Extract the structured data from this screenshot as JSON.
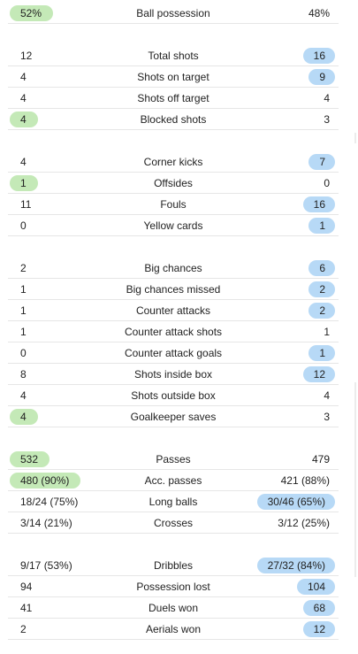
{
  "groups": [
    {
      "rows": [
        {
          "label": "Ball possession",
          "home": "52%",
          "away": "48%",
          "winner": "home"
        }
      ]
    },
    {
      "rows": [
        {
          "label": "Total shots",
          "home": "12",
          "away": "16",
          "winner": "away"
        },
        {
          "label": "Shots on target",
          "home": "4",
          "away": "9",
          "winner": "away"
        },
        {
          "label": "Shots off target",
          "home": "4",
          "away": "4",
          "winner": "none"
        },
        {
          "label": "Blocked shots",
          "home": "4",
          "away": "3",
          "winner": "home"
        }
      ]
    },
    {
      "rows": [
        {
          "label": "Corner kicks",
          "home": "4",
          "away": "7",
          "winner": "away"
        },
        {
          "label": "Offsides",
          "home": "1",
          "away": "0",
          "winner": "home"
        },
        {
          "label": "Fouls",
          "home": "11",
          "away": "16",
          "winner": "away"
        },
        {
          "label": "Yellow cards",
          "home": "0",
          "away": "1",
          "winner": "away"
        }
      ]
    },
    {
      "rows": [
        {
          "label": "Big chances",
          "home": "2",
          "away": "6",
          "winner": "away"
        },
        {
          "label": "Big chances missed",
          "home": "1",
          "away": "2",
          "winner": "away"
        },
        {
          "label": "Counter attacks",
          "home": "1",
          "away": "2",
          "winner": "away"
        },
        {
          "label": "Counter attack shots",
          "home": "1",
          "away": "1",
          "winner": "none"
        },
        {
          "label": "Counter attack goals",
          "home": "0",
          "away": "1",
          "winner": "away"
        },
        {
          "label": "Shots inside box",
          "home": "8",
          "away": "12",
          "winner": "away"
        },
        {
          "label": "Shots outside box",
          "home": "4",
          "away": "4",
          "winner": "none"
        },
        {
          "label": "Goalkeeper saves",
          "home": "4",
          "away": "3",
          "winner": "home"
        }
      ]
    },
    {
      "rows": [
        {
          "label": "Passes",
          "home": "532",
          "away": "479",
          "winner": "home"
        },
        {
          "label": "Acc. passes",
          "home": "480 (90%)",
          "away": "421 (88%)",
          "winner": "home"
        },
        {
          "label": "Long balls",
          "home": "18/24 (75%)",
          "away": "30/46 (65%)",
          "winner": "away"
        },
        {
          "label": "Crosses",
          "home": "3/14 (21%)",
          "away": "3/12 (25%)",
          "winner": "none"
        }
      ]
    },
    {
      "rows": [
        {
          "label": "Dribbles",
          "home": "9/17 (53%)",
          "away": "27/32 (84%)",
          "winner": "away"
        },
        {
          "label": "Possession lost",
          "home": "94",
          "away": "104",
          "winner": "away"
        },
        {
          "label": "Duels won",
          "home": "41",
          "away": "68",
          "winner": "away"
        },
        {
          "label": "Aerials won",
          "home": "2",
          "away": "12",
          "winner": "away"
        }
      ]
    }
  ],
  "colors": {
    "home_highlight": "#c4e9b7",
    "away_highlight": "#b7d9f6",
    "divider": "#e6e6e6",
    "text": "#222222"
  }
}
